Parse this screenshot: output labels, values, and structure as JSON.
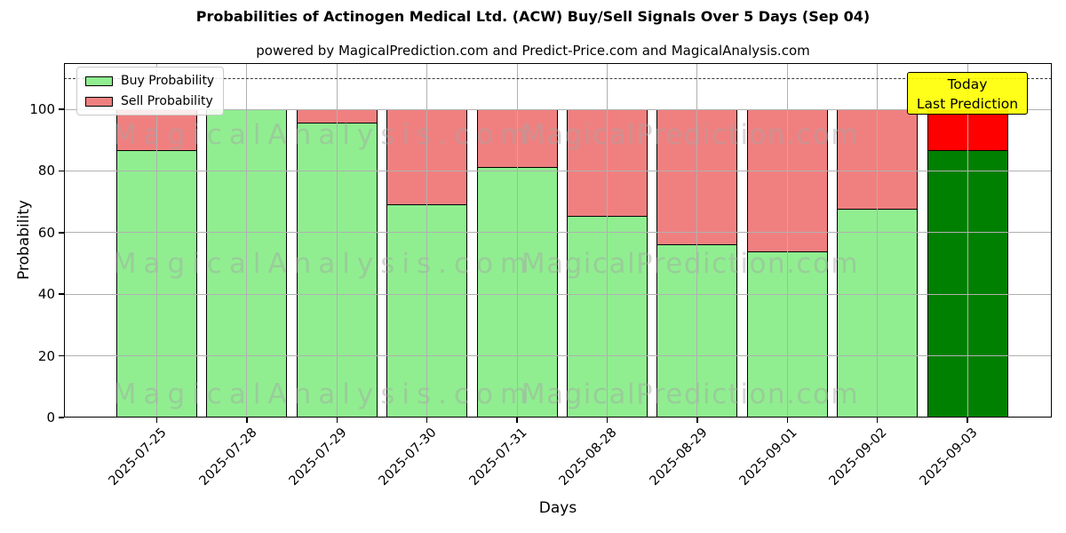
{
  "chart_data": {
    "type": "bar",
    "stacked": true,
    "title": "Probabilities of Actinogen Medical Ltd. (ACW) Buy/Sell Signals Over 5 Days (Sep 04)",
    "subtitle": "powered by MagicalPrediction.com and Predict-Price.com and MagicalAnalysis.com",
    "xlabel": "Days",
    "ylabel": "Probability",
    "categories": [
      "2025-07-25",
      "2025-07-28",
      "2025-07-29",
      "2025-07-30",
      "2025-07-31",
      "2025-08-28",
      "2025-08-29",
      "2025-09-01",
      "2025-09-02",
      "2025-09-03"
    ],
    "series": [
      {
        "name": "Buy Probability",
        "color": "#90ee90",
        "values": [
          87,
          100,
          96,
          69.5,
          81.5,
          65.5,
          56.5,
          54,
          68,
          87
        ]
      },
      {
        "name": "Sell Probability",
        "color": "#f08080",
        "values": [
          13,
          0,
          4,
          30.5,
          18.5,
          34.5,
          43.5,
          46,
          32,
          13
        ]
      }
    ],
    "today_bar": {
      "category": "2025-09-03",
      "index": 9,
      "buy_color": "#008000",
      "sell_color": "#ff0000"
    },
    "yticks": [
      0,
      20,
      40,
      60,
      80,
      100
    ],
    "ylim": [
      0,
      115
    ],
    "grid": true,
    "dashed_line_y": 110,
    "legend_position": "upper left",
    "bar_edge_color": "#000000"
  },
  "legend": {
    "items": [
      {
        "label": "Buy Probability",
        "color": "#90ee90"
      },
      {
        "label": "Sell Probability",
        "color": "#f08080"
      }
    ]
  },
  "annotation": {
    "line1": "Today",
    "line2": "Last Prediction",
    "bg_color": "#ffff00"
  },
  "watermarks": {
    "left_text": "MagicalAnalysis.com",
    "right_text": "MagicalPrediction.com"
  }
}
